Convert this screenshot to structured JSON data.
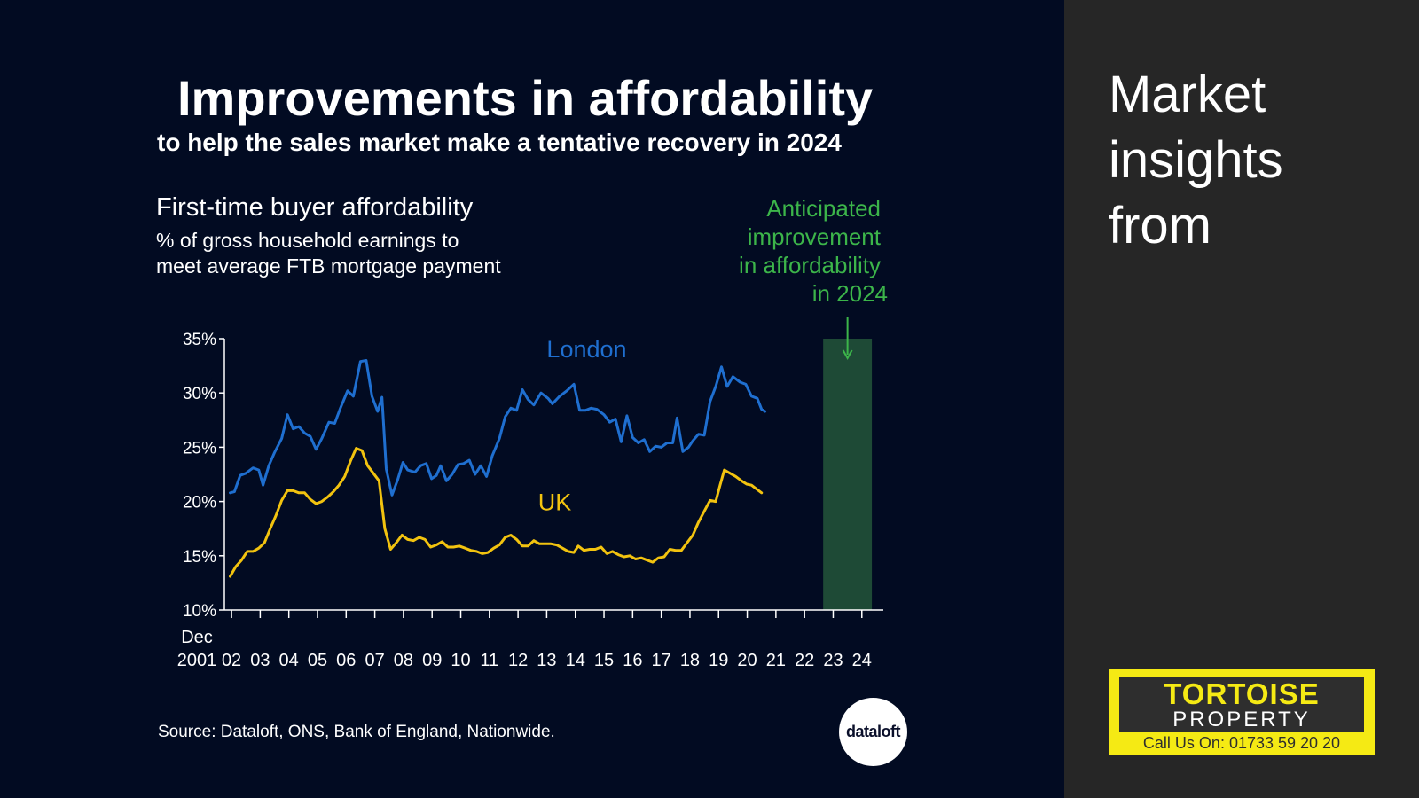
{
  "header": {
    "title": "Improvements in affordability",
    "subtitle": "to help the sales market make a tentative recovery in 2024"
  },
  "source": "Source: Dataloft, ONS, Bank of England, Nationwide.",
  "badge": "dataloft",
  "side_panel": {
    "heading_lines": [
      "Market",
      "insights",
      "from"
    ],
    "logo": {
      "brand": "TORTOISE",
      "brand2": "PROPERTY",
      "phone": "Call Us On: 01733 59 20 20"
    }
  },
  "colors": {
    "london": "#1f6fd0",
    "uk": "#f2c30f",
    "highlight": "#1e4a36",
    "annotation": "#3cb54a"
  },
  "chart_data": {
    "type": "line",
    "title": "First-time buyer affordability",
    "subtitle_lines": [
      "% of gross household earnings to",
      "meet average FTB mortgage payment"
    ],
    "annotation_lines": [
      "Anticipated",
      "improvement",
      "in affordability",
      "in 2024"
    ],
    "ylim": [
      10,
      35
    ],
    "yticks": [
      10,
      15,
      20,
      25,
      30,
      35
    ],
    "ytick_labels": [
      "10%",
      "15%",
      "20%",
      "25%",
      "30%",
      "35%"
    ],
    "xlim": [
      2001.75,
      2024.75
    ],
    "xticks": [
      2002,
      2003,
      2004,
      2005,
      2006,
      2007,
      2008,
      2009,
      2010,
      2011,
      2012,
      2013,
      2014,
      2015,
      2016,
      2017,
      2018,
      2019,
      2020,
      2021,
      2022,
      2023,
      2024
    ],
    "xtick_labels": [
      "02",
      "03",
      "04",
      "05",
      "06",
      "07",
      "08",
      "09",
      "10",
      "11",
      "12",
      "13",
      "14",
      "15",
      "16",
      "17",
      "18",
      "19",
      "20",
      "21",
      "22",
      "23",
      "24"
    ],
    "x_start_label": [
      "Dec",
      "2001"
    ],
    "highlight_range": [
      2023,
      2024
    ],
    "series": [
      {
        "name": "London",
        "color": "#1f6fd0",
        "points": [
          [
            2001.95,
            20.8
          ],
          [
            2002.1,
            20.9
          ],
          [
            2002.3,
            22.4
          ],
          [
            2002.5,
            22.6
          ],
          [
            2002.75,
            23.1
          ],
          [
            2002.95,
            22.9
          ],
          [
            2003.1,
            21.5
          ],
          [
            2003.3,
            23.3
          ],
          [
            2003.5,
            24.5
          ],
          [
            2003.75,
            25.8
          ],
          [
            2003.95,
            28.0
          ],
          [
            2004.15,
            26.7
          ],
          [
            2004.35,
            26.9
          ],
          [
            2004.55,
            26.3
          ],
          [
            2004.75,
            26.0
          ],
          [
            2004.95,
            24.8
          ],
          [
            2005.15,
            25.8
          ],
          [
            2005.4,
            27.3
          ],
          [
            2005.6,
            27.2
          ],
          [
            2005.8,
            28.6
          ],
          [
            2006.05,
            30.2
          ],
          [
            2006.25,
            29.7
          ],
          [
            2006.5,
            32.9
          ],
          [
            2006.7,
            33.0
          ],
          [
            2006.9,
            29.7
          ],
          [
            2007.1,
            28.3
          ],
          [
            2007.25,
            29.6
          ],
          [
            2007.4,
            23.0
          ],
          [
            2007.6,
            20.6
          ],
          [
            2007.8,
            22.0
          ],
          [
            2007.98,
            23.6
          ],
          [
            2008.15,
            22.9
          ],
          [
            2008.4,
            22.7
          ],
          [
            2008.6,
            23.3
          ],
          [
            2008.8,
            23.5
          ],
          [
            2008.98,
            22.1
          ],
          [
            2009.15,
            22.4
          ],
          [
            2009.3,
            23.3
          ],
          [
            2009.5,
            21.9
          ],
          [
            2009.7,
            22.5
          ],
          [
            2009.9,
            23.4
          ],
          [
            2010.1,
            23.5
          ],
          [
            2010.3,
            23.8
          ],
          [
            2010.5,
            22.5
          ],
          [
            2010.7,
            23.3
          ],
          [
            2010.9,
            22.3
          ],
          [
            2011.1,
            24.2
          ],
          [
            2011.35,
            25.8
          ],
          [
            2011.55,
            27.8
          ],
          [
            2011.75,
            28.6
          ],
          [
            2011.95,
            28.4
          ],
          [
            2012.15,
            30.3
          ],
          [
            2012.35,
            29.4
          ],
          [
            2012.55,
            28.9
          ],
          [
            2012.8,
            30.0
          ],
          [
            2013.05,
            29.5
          ],
          [
            2013.2,
            29.0
          ],
          [
            2013.45,
            29.7
          ],
          [
            2013.7,
            30.2
          ],
          [
            2013.95,
            30.8
          ],
          [
            2014.15,
            28.4
          ],
          [
            2014.35,
            28.4
          ],
          [
            2014.55,
            28.6
          ],
          [
            2014.75,
            28.5
          ],
          [
            2015.0,
            28.0
          ],
          [
            2015.2,
            27.3
          ],
          [
            2015.4,
            27.6
          ],
          [
            2015.6,
            25.5
          ],
          [
            2015.8,
            27.9
          ],
          [
            2016.0,
            25.9
          ],
          [
            2016.2,
            25.4
          ],
          [
            2016.4,
            25.7
          ],
          [
            2016.6,
            24.6
          ],
          [
            2016.8,
            25.1
          ],
          [
            2017.0,
            25.0
          ],
          [
            2017.2,
            25.4
          ],
          [
            2017.4,
            25.4
          ],
          [
            2017.55,
            27.7
          ],
          [
            2017.75,
            24.6
          ],
          [
            2017.95,
            25.0
          ],
          [
            2018.1,
            25.6
          ],
          [
            2018.3,
            26.2
          ],
          [
            2018.5,
            26.1
          ],
          [
            2018.7,
            29.2
          ],
          [
            2018.9,
            30.6
          ],
          [
            2019.1,
            32.4
          ],
          [
            2019.3,
            30.6
          ],
          [
            2019.5,
            31.5
          ],
          [
            2019.75,
            31.0
          ],
          [
            2019.95,
            30.8
          ],
          [
            2020.15,
            29.7
          ],
          [
            2020.35,
            29.5
          ],
          [
            2020.5,
            28.5
          ],
          [
            2020.62,
            28.3
          ]
        ]
      },
      {
        "name": "UK",
        "color": "#f2c30f",
        "points": [
          [
            2001.95,
            13.1
          ],
          [
            2002.15,
            14.0
          ],
          [
            2002.35,
            14.6
          ],
          [
            2002.55,
            15.4
          ],
          [
            2002.75,
            15.4
          ],
          [
            2002.95,
            15.7
          ],
          [
            2003.15,
            16.2
          ],
          [
            2003.35,
            17.5
          ],
          [
            2003.55,
            18.7
          ],
          [
            2003.75,
            20.1
          ],
          [
            2003.95,
            21.0
          ],
          [
            2004.15,
            21.0
          ],
          [
            2004.35,
            20.8
          ],
          [
            2004.55,
            20.8
          ],
          [
            2004.75,
            20.2
          ],
          [
            2004.95,
            19.8
          ],
          [
            2005.15,
            20.0
          ],
          [
            2005.35,
            20.4
          ],
          [
            2005.55,
            20.9
          ],
          [
            2005.75,
            21.5
          ],
          [
            2005.95,
            22.3
          ],
          [
            2006.15,
            23.7
          ],
          [
            2006.35,
            24.9
          ],
          [
            2006.55,
            24.7
          ],
          [
            2006.75,
            23.3
          ],
          [
            2006.95,
            22.6
          ],
          [
            2007.15,
            21.9
          ],
          [
            2007.35,
            17.5
          ],
          [
            2007.55,
            15.6
          ],
          [
            2007.75,
            16.2
          ],
          [
            2007.95,
            16.9
          ],
          [
            2008.15,
            16.5
          ],
          [
            2008.35,
            16.4
          ],
          [
            2008.55,
            16.7
          ],
          [
            2008.75,
            16.5
          ],
          [
            2008.95,
            15.8
          ],
          [
            2009.15,
            16.0
          ],
          [
            2009.35,
            16.3
          ],
          [
            2009.55,
            15.8
          ],
          [
            2009.75,
            15.8
          ],
          [
            2009.95,
            15.9
          ],
          [
            2010.15,
            15.7
          ],
          [
            2010.35,
            15.5
          ],
          [
            2010.55,
            15.4
          ],
          [
            2010.75,
            15.2
          ],
          [
            2010.95,
            15.3
          ],
          [
            2011.15,
            15.7
          ],
          [
            2011.35,
            16.0
          ],
          [
            2011.55,
            16.7
          ],
          [
            2011.75,
            16.9
          ],
          [
            2011.95,
            16.5
          ],
          [
            2012.15,
            15.9
          ],
          [
            2012.35,
            15.9
          ],
          [
            2012.55,
            16.4
          ],
          [
            2012.75,
            16.1
          ],
          [
            2012.95,
            16.1
          ],
          [
            2013.15,
            16.1
          ],
          [
            2013.35,
            16.0
          ],
          [
            2013.55,
            15.7
          ],
          [
            2013.75,
            15.4
          ],
          [
            2013.95,
            15.3
          ],
          [
            2014.1,
            15.9
          ],
          [
            2014.3,
            15.5
          ],
          [
            2014.5,
            15.6
          ],
          [
            2014.7,
            15.6
          ],
          [
            2014.9,
            15.8
          ],
          [
            2015.1,
            15.2
          ],
          [
            2015.3,
            15.4
          ],
          [
            2015.5,
            15.1
          ],
          [
            2015.7,
            14.9
          ],
          [
            2015.9,
            15.0
          ],
          [
            2016.1,
            14.7
          ],
          [
            2016.3,
            14.8
          ],
          [
            2016.5,
            14.6
          ],
          [
            2016.7,
            14.4
          ],
          [
            2016.9,
            14.8
          ],
          [
            2017.1,
            14.9
          ],
          [
            2017.3,
            15.6
          ],
          [
            2017.5,
            15.5
          ],
          [
            2017.7,
            15.5
          ],
          [
            2017.9,
            16.2
          ],
          [
            2018.1,
            16.9
          ],
          [
            2018.3,
            18.1
          ],
          [
            2018.5,
            19.1
          ],
          [
            2018.7,
            20.1
          ],
          [
            2018.9,
            20.0
          ],
          [
            2019.05,
            21.5
          ],
          [
            2019.2,
            22.9
          ],
          [
            2019.4,
            22.6
          ],
          [
            2019.6,
            22.3
          ],
          [
            2019.8,
            21.9
          ],
          [
            2019.98,
            21.6
          ],
          [
            2020.15,
            21.5
          ],
          [
            2020.3,
            21.2
          ],
          [
            2020.5,
            20.8
          ]
        ]
      }
    ],
    "series_labels": [
      {
        "name": "London",
        "x": 2013.0,
        "y": 33.3
      },
      {
        "name": "UK",
        "x": 2012.7,
        "y": 19.2
      }
    ]
  }
}
